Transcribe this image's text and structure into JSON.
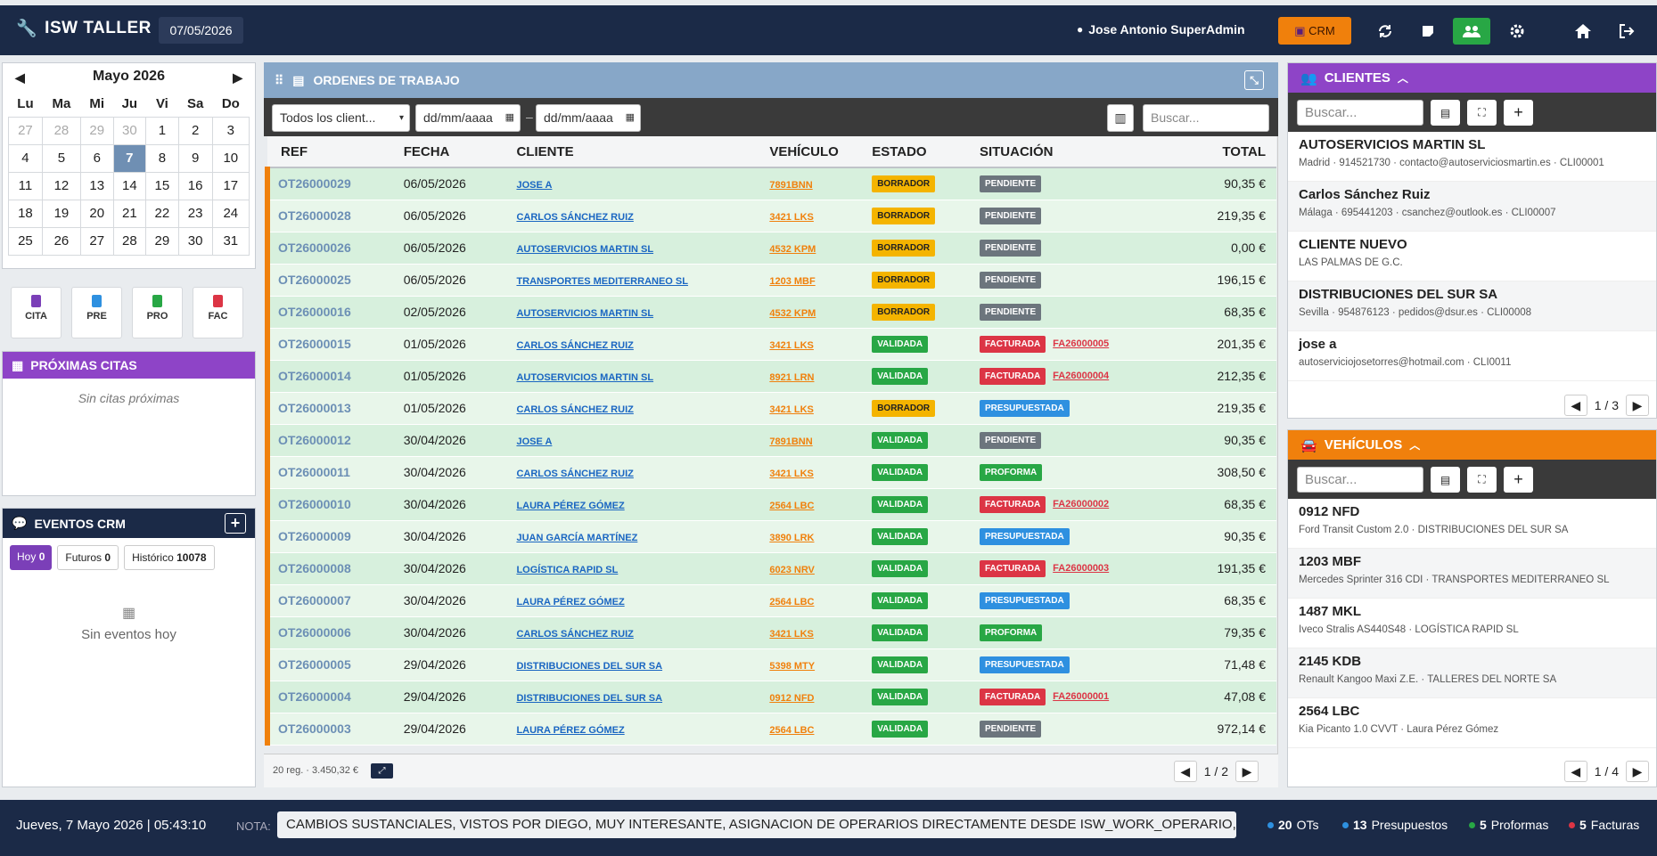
{
  "header": {
    "app_title": "ISW TALLER",
    "date": "07/05/2026",
    "user": "Jose Antonio SuperAdmin",
    "crm_label": "CRM"
  },
  "calendar": {
    "month_label": "Mayo 2026",
    "weekdays": [
      "Lu",
      "Ma",
      "Mi",
      "Ju",
      "Vi",
      "Sa",
      "Do"
    ],
    "weeks": [
      [
        "27",
        "28",
        "29",
        "30",
        "1",
        "2",
        "3"
      ],
      [
        "4",
        "5",
        "6",
        "7",
        "8",
        "9",
        "10"
      ],
      [
        "11",
        "12",
        "13",
        "14",
        "15",
        "16",
        "17"
      ],
      [
        "18",
        "19",
        "20",
        "21",
        "22",
        "23",
        "24"
      ],
      [
        "25",
        "26",
        "27",
        "28",
        "29",
        "30",
        "31"
      ]
    ],
    "today": "7"
  },
  "quick_actions": [
    {
      "label": "CITA",
      "color": "#7b3fb8"
    },
    {
      "label": "PRE",
      "color": "#2e90e0"
    },
    {
      "label": "PRO",
      "color": "#28a745"
    },
    {
      "label": "FAC",
      "color": "#dc3545"
    }
  ],
  "proximas_citas": {
    "title": "PRÓXIMAS CITAS",
    "empty": "Sin citas próximas"
  },
  "eventos": {
    "title": "EVENTOS CRM",
    "tab_hoy": "Hoy",
    "tab_hoy_count": "0",
    "tab_futuros": "Futuros",
    "tab_futuros_count": "0",
    "tab_historico": "Histórico",
    "tab_historico_count": "10078",
    "empty": "Sin eventos hoy"
  },
  "ordenes": {
    "title": "ORDENES DE TRABAJO",
    "client_filter": "Todos los client...",
    "date_from": "dd/mm/aaaa",
    "date_to": "dd/mm/aaaa",
    "date_sep": "–",
    "search_placeholder": "Buscar...",
    "columns": [
      "REF",
      "FECHA",
      "CLIENTE",
      "VEHÍCULO",
      "ESTADO",
      "SITUACIÓN",
      "TOTAL"
    ],
    "rows": [
      {
        "ref": "OT26000029",
        "fecha": "06/05/2026",
        "cliente": "JOSE A",
        "vehiculo": "7891BNN",
        "estado": "BORRADOR",
        "situacion": "PENDIENTE",
        "factura": "",
        "total": "90,35 €"
      },
      {
        "ref": "OT26000028",
        "fecha": "06/05/2026",
        "cliente": "CARLOS SÁNCHEZ RUIZ",
        "vehiculo": "3421 LKS",
        "estado": "BORRADOR",
        "situacion": "PENDIENTE",
        "factura": "",
        "total": "219,35 €"
      },
      {
        "ref": "OT26000026",
        "fecha": "06/05/2026",
        "cliente": "AUTOSERVICIOS MARTIN SL",
        "vehiculo": "4532 KPM",
        "estado": "BORRADOR",
        "situacion": "PENDIENTE",
        "factura": "",
        "total": "0,00 €"
      },
      {
        "ref": "OT26000025",
        "fecha": "06/05/2026",
        "cliente": "TRANSPORTES MEDITERRANEO SL",
        "vehiculo": "1203 MBF",
        "estado": "BORRADOR",
        "situacion": "PENDIENTE",
        "factura": "",
        "total": "196,15 €"
      },
      {
        "ref": "OT26000016",
        "fecha": "02/05/2026",
        "cliente": "AUTOSERVICIOS MARTIN SL",
        "vehiculo": "4532 KPM",
        "estado": "BORRADOR",
        "situacion": "PENDIENTE",
        "factura": "",
        "total": "68,35 €"
      },
      {
        "ref": "OT26000015",
        "fecha": "01/05/2026",
        "cliente": "CARLOS SÁNCHEZ RUIZ",
        "vehiculo": "3421 LKS",
        "estado": "VALIDADA",
        "situacion": "FACTURADA",
        "factura": "FA26000005",
        "total": "201,35 €"
      },
      {
        "ref": "OT26000014",
        "fecha": "01/05/2026",
        "cliente": "AUTOSERVICIOS MARTIN SL",
        "vehiculo": "8921 LRN",
        "estado": "VALIDADA",
        "situacion": "FACTURADA",
        "factura": "FA26000004",
        "total": "212,35 €"
      },
      {
        "ref": "OT26000013",
        "fecha": "01/05/2026",
        "cliente": "CARLOS SÁNCHEZ RUIZ",
        "vehiculo": "3421 LKS",
        "estado": "BORRADOR",
        "situacion": "PRESUPUESTADA",
        "factura": "",
        "total": "219,35 €"
      },
      {
        "ref": "OT26000012",
        "fecha": "30/04/2026",
        "cliente": "JOSE A",
        "vehiculo": "7891BNN",
        "estado": "VALIDADA",
        "situacion": "PENDIENTE",
        "factura": "",
        "total": "90,35 €"
      },
      {
        "ref": "OT26000011",
        "fecha": "30/04/2026",
        "cliente": "CARLOS SÁNCHEZ RUIZ",
        "vehiculo": "3421 LKS",
        "estado": "VALIDADA",
        "situacion": "PROFORMA",
        "factura": "",
        "total": "308,50 €"
      },
      {
        "ref": "OT26000010",
        "fecha": "30/04/2026",
        "cliente": "LAURA PÉREZ GÓMEZ",
        "vehiculo": "2564 LBC",
        "estado": "VALIDADA",
        "situacion": "FACTURADA",
        "factura": "FA26000002",
        "total": "68,35 €"
      },
      {
        "ref": "OT26000009",
        "fecha": "30/04/2026",
        "cliente": "JUAN GARCÍA MARTÍNEZ",
        "vehiculo": "3890 LRK",
        "estado": "VALIDADA",
        "situacion": "PRESUPUESTADA",
        "factura": "",
        "total": "90,35 €"
      },
      {
        "ref": "OT26000008",
        "fecha": "30/04/2026",
        "cliente": "LOGÍSTICA RAPID SL",
        "vehiculo": "6023 NRV",
        "estado": "VALIDADA",
        "situacion": "FACTURADA",
        "factura": "FA26000003",
        "total": "191,35 €"
      },
      {
        "ref": "OT26000007",
        "fecha": "30/04/2026",
        "cliente": "LAURA PÉREZ GÓMEZ",
        "vehiculo": "2564 LBC",
        "estado": "VALIDADA",
        "situacion": "PRESUPUESTADA",
        "factura": "",
        "total": "68,35 €"
      },
      {
        "ref": "OT26000006",
        "fecha": "30/04/2026",
        "cliente": "CARLOS SÁNCHEZ RUIZ",
        "vehiculo": "3421 LKS",
        "estado": "VALIDADA",
        "situacion": "PROFORMA",
        "factura": "",
        "total": "79,35 €"
      },
      {
        "ref": "OT26000005",
        "fecha": "29/04/2026",
        "cliente": "DISTRIBUCIONES DEL SUR SA",
        "vehiculo": "5398 MTY",
        "estado": "VALIDADA",
        "situacion": "PRESUPUESTADA",
        "factura": "",
        "total": "71,48 €"
      },
      {
        "ref": "OT26000004",
        "fecha": "29/04/2026",
        "cliente": "DISTRIBUCIONES DEL SUR SA",
        "vehiculo": "0912 NFD",
        "estado": "VALIDADA",
        "situacion": "FACTURADA",
        "factura": "FA26000001",
        "total": "47,08 €"
      },
      {
        "ref": "OT26000003",
        "fecha": "29/04/2026",
        "cliente": "LAURA PÉREZ GÓMEZ",
        "vehiculo": "2564 LBC",
        "estado": "VALIDADA",
        "situacion": "PENDIENTE",
        "factura": "",
        "total": "972,14 €"
      }
    ],
    "footer_summary": "20 reg. · 3.450,32 €",
    "page": "1 / 2"
  },
  "clientes": {
    "title": "CLIENTES",
    "search_placeholder": "Buscar...",
    "page": "1 / 3",
    "items": [
      {
        "name": "AUTOSERVICIOS MARTIN SL",
        "detail": "Madrid · 914521730 · contacto@autoserviciosmartin.es · CLI00001"
      },
      {
        "name": "Carlos Sánchez Ruiz",
        "detail": "Málaga · 695441203 · csanchez@outlook.es · CLI00007"
      },
      {
        "name": "CLIENTE NUEVO",
        "detail": "LAS PALMAS DE G.C."
      },
      {
        "name": "DISTRIBUCIONES DEL SUR SA",
        "detail": "Sevilla · 954876123 · pedidos@dsur.es · CLI00008"
      },
      {
        "name": "jose a",
        "detail": "autoserviciojosetorres@hotmail.com · CLI0011"
      }
    ]
  },
  "vehiculos": {
    "title": "VEHÍCULOS",
    "search_placeholder": "Buscar...",
    "page": "1 / 4",
    "items": [
      {
        "name": "0912 NFD",
        "detail": "Ford Transit Custom 2.0 · DISTRIBUCIONES DEL SUR SA"
      },
      {
        "name": "1203 MBF",
        "detail": "Mercedes Sprinter 316 CDI · TRANSPORTES MEDITERRANEO SL"
      },
      {
        "name": "1487 MKL",
        "detail": "Iveco Stralis AS440S48 · LOGÍSTICA RAPID SL"
      },
      {
        "name": "2145 KDB",
        "detail": "Renault Kangoo Maxi Z.E. · TALLERES DEL NORTE SA"
      },
      {
        "name": "2564 LBC",
        "detail": "Kia Picanto 1.0 CVVT · Laura Pérez Gómez"
      }
    ]
  },
  "footer": {
    "datetime": "Jueves, 7 Mayo 2026 | 05:43:10",
    "nota_label": "NOTA:",
    "nota": "CAMBIOS SUSTANCIALES, VISTOS POR DIEGO, MUY INTERESANTE, ASIGNACION DE OPERARIOS DIRECTAMENTE DESDE ISW_WORK_OPERARIO, Impresion RDepo",
    "stats": [
      {
        "count": "20",
        "label": "OTs",
        "color": "#2e90e0"
      },
      {
        "count": "13",
        "label": "Presupuestos",
        "color": "#2e90e0"
      },
      {
        "count": "5",
        "label": "Proformas",
        "color": "#28a745"
      },
      {
        "count": "5",
        "label": "Facturas",
        "color": "#dc3545"
      }
    ]
  },
  "colors": {
    "accent_orange": "#f0800c",
    "navy": "#1b2a47",
    "purple": "#8e44c7",
    "steel_blue": "#87a7c8"
  }
}
